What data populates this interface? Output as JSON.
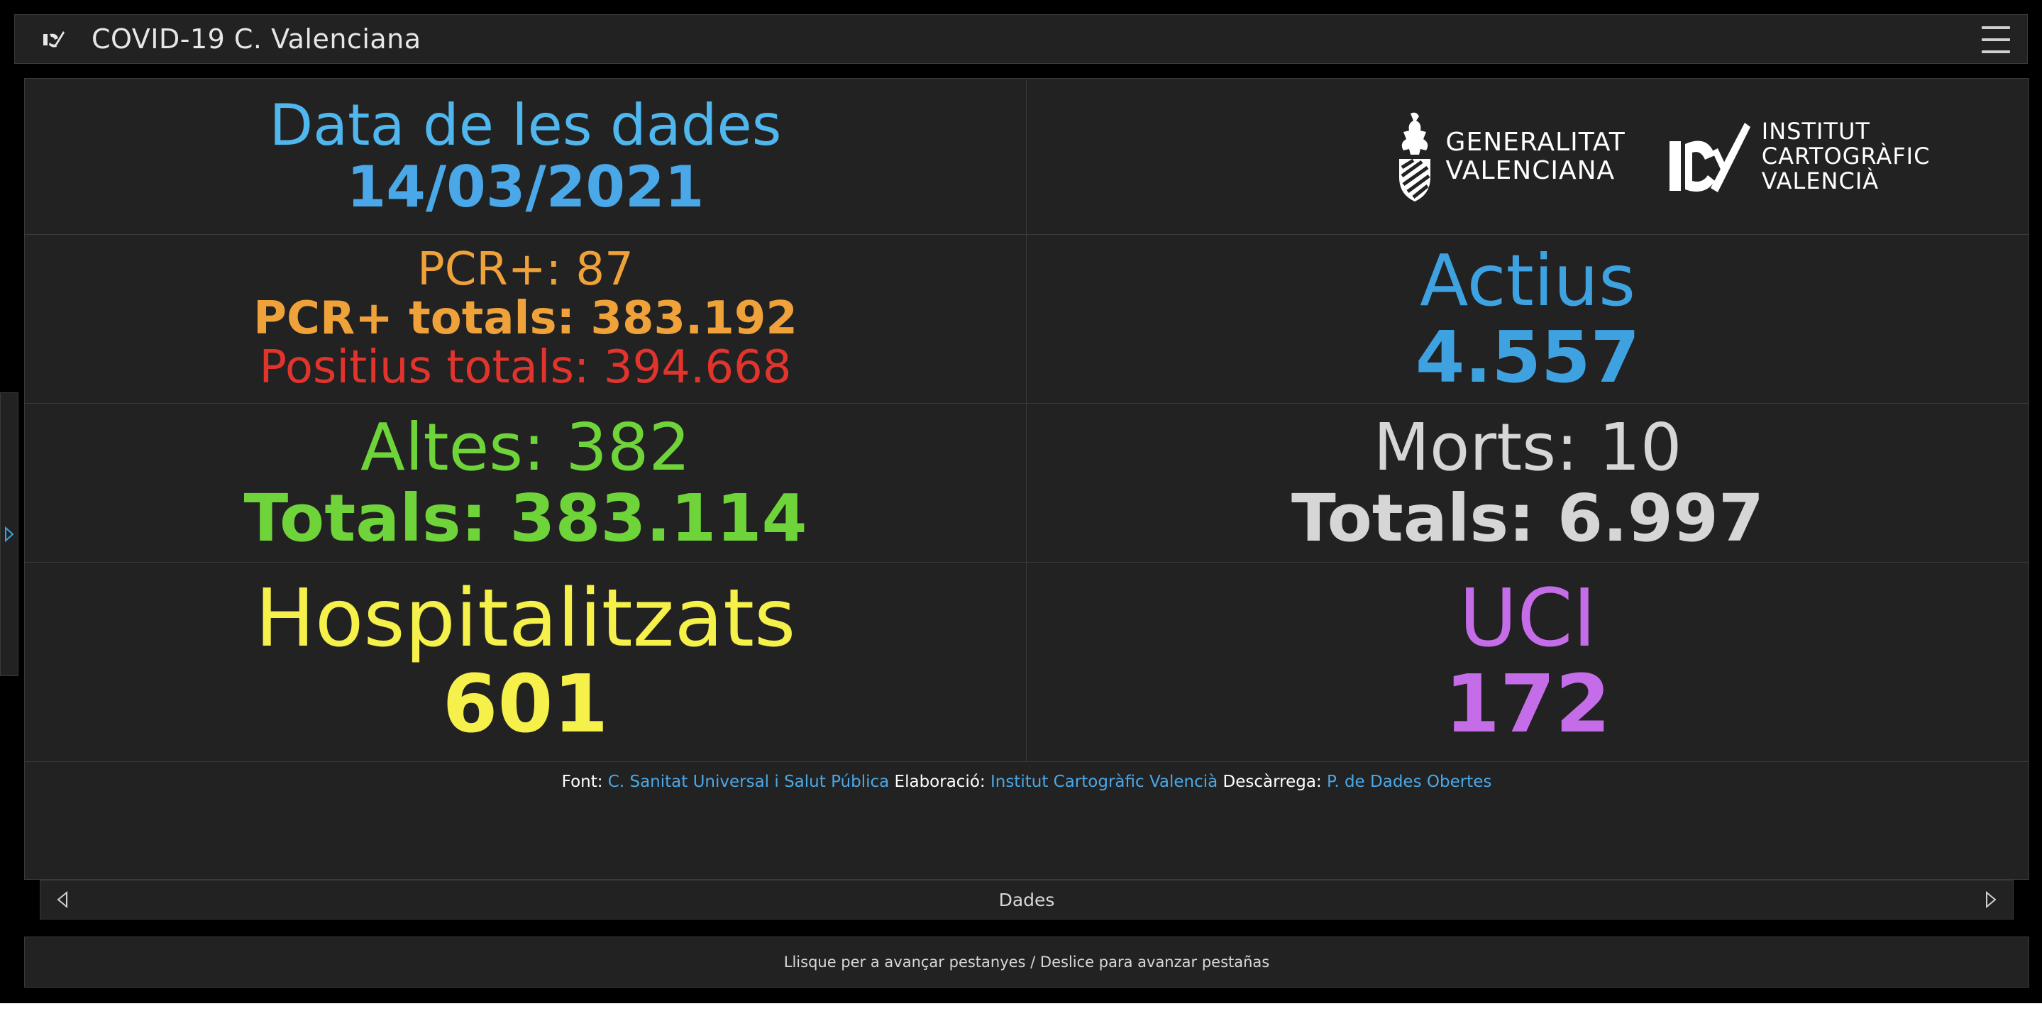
{
  "header": {
    "title": "COVID-19 C. Valenciana",
    "logo_icon": "icv-icon",
    "menu_icon": "hamburger-menu-icon"
  },
  "colors": {
    "date_label": "#4fb6ee",
    "date_value": "#4aa8e8",
    "pcr": "#f0a23a",
    "positius": "#e0342c",
    "actius": "#3fa2e0",
    "altes": "#6fd43a",
    "morts": "#d6d6d6",
    "hospitalitzats": "#f5f04a",
    "uci": "#c56de8",
    "link": "#4aa8e8"
  },
  "data_date": {
    "label": "Data de les dades",
    "value": "14/03/2021"
  },
  "logos": {
    "gva": {
      "line1": "GENERALITAT",
      "line2": "VALENCIANA"
    },
    "icv": {
      "line1": "INSTITUT",
      "line2": "CARTOGRÀFIC",
      "line3": "VALENCIÀ"
    }
  },
  "pcr": {
    "daily": "PCR+: 87",
    "total": "PCR+ totals: 383.192",
    "positius_total": "Positius totals: 394.668"
  },
  "actius": {
    "label": "Actius",
    "value": "4.557"
  },
  "altes": {
    "daily": "Altes: 382",
    "total": "Totals: 383.114"
  },
  "morts": {
    "daily": "Morts: 10",
    "total": "Totals: 6.997"
  },
  "hospitalitzats": {
    "label": "Hospitalitzats",
    "value": "601"
  },
  "uci": {
    "label": "UCI",
    "value": "172"
  },
  "source": {
    "font_label": "Font:",
    "font_link": "C. Sanitat Universal i Salut Pública",
    "elab_label": "Elaboració:",
    "elab_link": "Institut Cartogràfic Valencià",
    "desc_label": "Descàrrega:",
    "desc_link": "P. de Dades Obertes"
  },
  "tabs": {
    "current": "Dades"
  },
  "hint": "Llisque per a avançar pestanyes / Deslice para avanzar pestañas"
}
